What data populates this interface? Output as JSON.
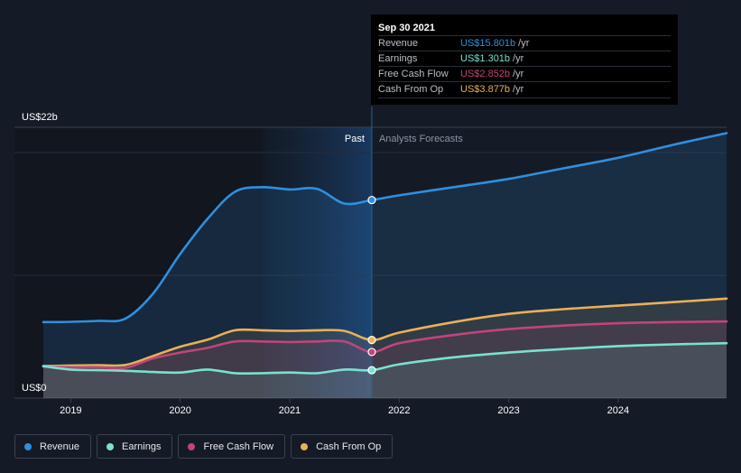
{
  "chart_data": {
    "type": "area",
    "y_top_label": "US$22b",
    "y_bottom_label": "US$0",
    "ylim": [
      0,
      22
    ],
    "xlim": [
      2018.75,
      2024.99
    ],
    "x_ticks": [
      {
        "value": 2019,
        "label": "2019"
      },
      {
        "value": 2020,
        "label": "2020"
      },
      {
        "value": 2021,
        "label": "2021"
      },
      {
        "value": 2022,
        "label": "2022"
      },
      {
        "value": 2023,
        "label": "2023"
      },
      {
        "value": 2024,
        "label": "2024"
      }
    ],
    "past_label": "Past",
    "forecast_label": "Analysts Forecasts",
    "divider_x": 2021.75,
    "highlight_start_x": 2020.75,
    "series": [
      {
        "name": "Revenue",
        "color": "#2f8fdf",
        "points": [
          [
            2018.75,
            5.4
          ],
          [
            2019.0,
            5.42
          ],
          [
            2019.25,
            5.5
          ],
          [
            2019.5,
            5.7
          ],
          [
            2019.75,
            7.8
          ],
          [
            2020.0,
            11.2
          ],
          [
            2020.25,
            14.2
          ],
          [
            2020.5,
            16.5
          ],
          [
            2020.75,
            16.9
          ],
          [
            2021.0,
            16.7
          ],
          [
            2021.25,
            16.75
          ],
          [
            2021.5,
            15.5
          ],
          [
            2021.75,
            15.801
          ],
          [
            2022.0,
            16.2
          ],
          [
            2022.5,
            16.9
          ],
          [
            2023.0,
            17.6
          ],
          [
            2023.5,
            18.5
          ],
          [
            2024.0,
            19.4
          ],
          [
            2024.5,
            20.5
          ],
          [
            2024.99,
            21.5
          ]
        ]
      },
      {
        "name": "Cash From Op",
        "color": "#e8b05a",
        "points": [
          [
            2018.75,
            1.65
          ],
          [
            2019.0,
            1.7
          ],
          [
            2019.25,
            1.72
          ],
          [
            2019.5,
            1.75
          ],
          [
            2019.75,
            2.5
          ],
          [
            2020.0,
            3.3
          ],
          [
            2020.25,
            3.9
          ],
          [
            2020.5,
            4.7
          ],
          [
            2020.75,
            4.7
          ],
          [
            2021.0,
            4.65
          ],
          [
            2021.25,
            4.7
          ],
          [
            2021.5,
            4.65
          ],
          [
            2021.75,
            3.877
          ],
          [
            2022.0,
            4.5
          ],
          [
            2022.5,
            5.4
          ],
          [
            2023.0,
            6.1
          ],
          [
            2023.5,
            6.5
          ],
          [
            2024.0,
            6.8
          ],
          [
            2024.5,
            7.1
          ],
          [
            2024.99,
            7.4
          ]
        ]
      },
      {
        "name": "Free Cash Flow",
        "color": "#c2447a",
        "points": [
          [
            2018.75,
            1.6
          ],
          [
            2019.0,
            1.55
          ],
          [
            2019.25,
            1.55
          ],
          [
            2019.5,
            1.5
          ],
          [
            2019.75,
            2.3
          ],
          [
            2020.0,
            2.8
          ],
          [
            2020.25,
            3.2
          ],
          [
            2020.5,
            3.75
          ],
          [
            2020.75,
            3.75
          ],
          [
            2021.0,
            3.7
          ],
          [
            2021.25,
            3.75
          ],
          [
            2021.5,
            3.75
          ],
          [
            2021.75,
            2.852
          ],
          [
            2022.0,
            3.6
          ],
          [
            2022.5,
            4.3
          ],
          [
            2023.0,
            4.8
          ],
          [
            2023.5,
            5.1
          ],
          [
            2024.0,
            5.3
          ],
          [
            2024.5,
            5.4
          ],
          [
            2024.99,
            5.45
          ]
        ]
      },
      {
        "name": "Earnings",
        "color": "#7be0cf",
        "points": [
          [
            2018.75,
            1.65
          ],
          [
            2019.0,
            1.35
          ],
          [
            2019.25,
            1.3
          ],
          [
            2019.5,
            1.25
          ],
          [
            2019.75,
            1.15
          ],
          [
            2020.0,
            1.1
          ],
          [
            2020.25,
            1.35
          ],
          [
            2020.5,
            1.05
          ],
          [
            2020.75,
            1.05
          ],
          [
            2021.0,
            1.1
          ],
          [
            2021.25,
            1.05
          ],
          [
            2021.5,
            1.35
          ],
          [
            2021.75,
            1.301
          ],
          [
            2022.0,
            1.8
          ],
          [
            2022.5,
            2.4
          ],
          [
            2023.0,
            2.8
          ],
          [
            2023.5,
            3.1
          ],
          [
            2024.0,
            3.35
          ],
          [
            2024.5,
            3.5
          ],
          [
            2024.99,
            3.6
          ]
        ]
      }
    ]
  },
  "tooltip": {
    "date": "Sep 30 2021",
    "rows": [
      {
        "label": "Revenue",
        "value": "US$15.801b",
        "unit": "/yr",
        "color": "#2f8fdf"
      },
      {
        "label": "Earnings",
        "value": "US$1.301b",
        "unit": "/yr",
        "color": "#7be0cf"
      },
      {
        "label": "Free Cash Flow",
        "value": "US$2.852b",
        "unit": "/yr",
        "color": "#c2447a"
      },
      {
        "label": "Cash From Op",
        "value": "US$3.877b",
        "unit": "/yr",
        "color": "#e8b05a"
      }
    ]
  },
  "legend": [
    {
      "label": "Revenue",
      "color": "#2f8fdf"
    },
    {
      "label": "Earnings",
      "color": "#7be0cf"
    },
    {
      "label": "Free Cash Flow",
      "color": "#c2447a"
    },
    {
      "label": "Cash From Op",
      "color": "#e8b05a"
    }
  ]
}
